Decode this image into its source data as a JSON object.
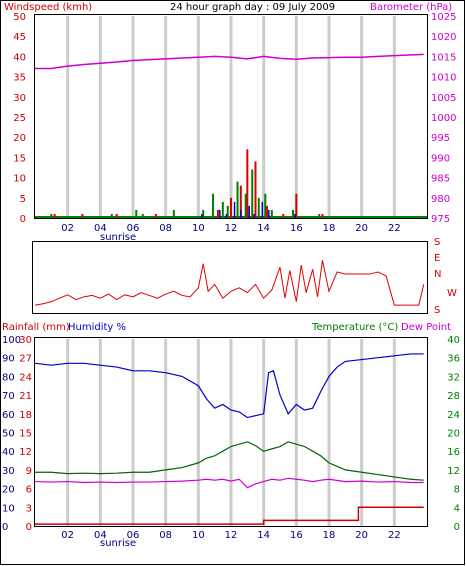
{
  "chart_data": [
    {
      "type": "bar",
      "title": "24 hour graph day : 09 July 2009",
      "ylabel_left": "Windspeed (kmh)",
      "ylabel_right": "Barometer (hPa)",
      "x_ticks": [
        "02",
        "04",
        "06",
        "08",
        "10",
        "12",
        "14",
        "16",
        "18",
        "20",
        "22"
      ],
      "x_annotation": "sunrise",
      "left_axis": {
        "ticks": [
          "0",
          "5",
          "10",
          "15",
          "20",
          "25",
          "30",
          "35",
          "40",
          "45",
          "50"
        ],
        "range": [
          0,
          50
        ]
      },
      "right_axis": {
        "ticks": [
          "975",
          "980",
          "985",
          "990",
          "995",
          "1000",
          "1005",
          "1010",
          "1015",
          "1020",
          "1025"
        ],
        "range": [
          975,
          1025
        ]
      },
      "barometer": {
        "x": [
          0,
          1,
          2,
          3,
          4,
          5,
          6,
          7,
          8,
          9,
          10,
          11,
          12,
          13,
          14,
          15,
          16,
          17,
          18,
          19,
          20,
          21,
          22,
          23.8
        ],
        "y": [
          1012.0,
          1012.0,
          1012.6,
          1013.0,
          1013.3,
          1013.6,
          1014.0,
          1014.2,
          1014.4,
          1014.6,
          1014.8,
          1015.0,
          1014.8,
          1014.4,
          1015.0,
          1014.5,
          1014.3,
          1014.6,
          1014.7,
          1014.8,
          1014.8,
          1015.0,
          1015.2,
          1015.5
        ]
      },
      "gust_bars": {
        "x": [
          1.2,
          2.9,
          5.0,
          7.4,
          11.2,
          12.0,
          12.6,
          13.0,
          13.5,
          14.2,
          15.2,
          16.0,
          17.6
        ],
        "y": [
          1,
          1,
          1,
          1,
          2,
          5,
          8,
          17,
          14,
          3,
          1,
          6,
          1
        ]
      },
      "avg_bars": {
        "x": [
          1.0,
          4.7,
          6.2,
          6.6,
          8.5,
          10.3,
          10.9,
          11.5,
          11.8,
          12.4,
          12.9,
          13.3,
          13.7,
          14.1,
          14.5,
          15.8,
          17.4
        ],
        "y": [
          1,
          1,
          2,
          1,
          2,
          2,
          6,
          4,
          3,
          9,
          6,
          12,
          5,
          6,
          2,
          2,
          1
        ]
      },
      "direction_bars": {
        "x": [
          10.2,
          11.3,
          11.7,
          12.2,
          12.6,
          13.1,
          13.4,
          13.9,
          14.3,
          15.9
        ],
        "y": [
          1,
          2,
          1,
          4,
          2,
          3,
          1,
          4,
          2,
          1
        ]
      },
      "colors": {
        "gust": "#dd0000",
        "average": "#008000",
        "dir": "#0000cc",
        "barometer": "#cc00cc",
        "axis_left": "#cc0000",
        "axis_right": "#cc00cc"
      }
    },
    {
      "type": "line",
      "ylabel_right_ticks": [
        "S",
        "E",
        "N",
        "W",
        "S"
      ],
      "direction_label": "W",
      "description": "",
      "wind_direction": {
        "x": [
          0.0,
          0.5,
          1.0,
          1.5,
          2.0,
          2.5,
          3.0,
          3.5,
          4.0,
          4.5,
          5.0,
          5.5,
          6.0,
          6.5,
          7.0,
          7.5,
          8.0,
          8.5,
          9.0,
          9.5,
          10.0,
          10.3,
          10.6,
          11.0,
          11.5,
          12.0,
          12.5,
          13.0,
          13.5,
          14.0,
          14.5,
          15.0,
          15.3,
          15.6,
          16.0,
          16.3,
          16.6,
          17.0,
          17.3,
          17.6,
          18.0,
          18.5,
          19.0,
          19.5,
          20.0,
          20.5,
          21.0,
          21.5,
          22.0,
          22.5,
          23.0,
          23.5,
          23.8
        ],
        "y": [
          10,
          12,
          15,
          20,
          25,
          18,
          22,
          24,
          20,
          26,
          18,
          25,
          22,
          28,
          24,
          20,
          26,
          30,
          24,
          22,
          35,
          70,
          30,
          40,
          20,
          30,
          35,
          28,
          40,
          20,
          32,
          65,
          20,
          60,
          15,
          68,
          28,
          62,
          22,
          75,
          30,
          58,
          55,
          55,
          55,
          55,
          58,
          52,
          10,
          10,
          10,
          10,
          40
        ]
      },
      "color": "#dd0000"
    },
    {
      "type": "line",
      "title_left": "Rainfall (mm)",
      "title_humidity": "Humidity %",
      "title_temp": "Temperature (°C)",
      "title_dew": "Dew Point",
      "rain_ticks": [
        "0",
        "3",
        "6",
        "9",
        "12",
        "15",
        "18",
        "21",
        "24",
        "27",
        "30"
      ],
      "humidity_ticks": [
        "0",
        "10",
        "20",
        "30",
        "40",
        "50",
        "60",
        "70",
        "80",
        "90",
        "100"
      ],
      "temp_ticks_right": [
        "0",
        "4",
        "8",
        "12",
        "16",
        "20",
        "24",
        "28",
        "32",
        "36",
        "40"
      ],
      "x_ticks": [
        "02",
        "04",
        "06",
        "08",
        "10",
        "12",
        "14",
        "16",
        "18",
        "20",
        "22"
      ],
      "x_annotation": "sunrise",
      "humidity": {
        "x": [
          0,
          1,
          2,
          3,
          4,
          5,
          6,
          7,
          8,
          9,
          10,
          10.5,
          11,
          11.5,
          12,
          12.5,
          13,
          13.5,
          14,
          14.3,
          14.6,
          15,
          15.5,
          16,
          16.5,
          17,
          17.5,
          18,
          18.5,
          19,
          20,
          21,
          22,
          23,
          23.8
        ],
        "y": [
          87,
          86,
          87,
          87,
          86,
          85,
          83,
          83,
          82,
          80,
          75,
          68,
          63,
          65,
          62,
          61,
          58,
          59,
          60,
          82,
          83,
          70,
          60,
          65,
          62,
          63,
          72,
          80,
          85,
          88,
          89,
          90,
          91,
          92,
          92
        ]
      },
      "temperature": {
        "x": [
          0,
          1,
          2,
          3,
          4,
          5,
          6,
          7,
          8,
          9,
          10,
          10.5,
          11,
          11.5,
          12,
          12.5,
          13,
          13.5,
          14,
          14.5,
          15,
          15.5,
          16,
          16.5,
          17,
          17.5,
          18,
          19,
          20,
          21,
          22,
          23,
          23.8
        ],
        "y": [
          11.5,
          11.5,
          11.2,
          11.3,
          11.2,
          11.3,
          11.5,
          11.5,
          12.0,
          12.5,
          13.5,
          14.5,
          15.0,
          16.0,
          17.0,
          17.5,
          18.0,
          17.2,
          16.0,
          16.5,
          17.0,
          18.0,
          17.5,
          17.0,
          16.0,
          15.0,
          13.5,
          12.0,
          11.5,
          11.0,
          10.5,
          10.0,
          9.8
        ]
      },
      "dew_point": {
        "x": [
          0,
          1,
          2,
          3,
          4,
          5,
          6,
          7,
          8,
          9,
          10,
          10.5,
          11,
          11.5,
          12,
          12.5,
          13,
          13.5,
          14,
          14.5,
          15,
          15.5,
          16,
          16.5,
          17,
          17.5,
          18,
          19,
          20,
          21,
          22,
          23,
          23.8
        ],
        "y": [
          9.5,
          9.4,
          9.5,
          9.3,
          9.4,
          9.3,
          9.4,
          9.4,
          9.5,
          9.6,
          9.8,
          10.0,
          9.8,
          10.0,
          9.6,
          10.0,
          8.2,
          9.0,
          9.5,
          10.0,
          9.8,
          10.2,
          10.0,
          9.8,
          9.5,
          9.8,
          10.0,
          9.5,
          9.6,
          9.4,
          9.5,
          9.3,
          9.3
        ]
      },
      "rainfall": {
        "x": [
          0,
          14.0,
          14.0,
          19.8,
          19.8,
          23.8
        ],
        "y": [
          0.3,
          0.3,
          0.9,
          0.9,
          3.0,
          3.0
        ]
      },
      "colors": {
        "humidity": "#0000cc",
        "temperature": "#006600",
        "dew": "#cc00cc",
        "rain": "#cc0000",
        "axis_temp": "#008000"
      }
    }
  ]
}
